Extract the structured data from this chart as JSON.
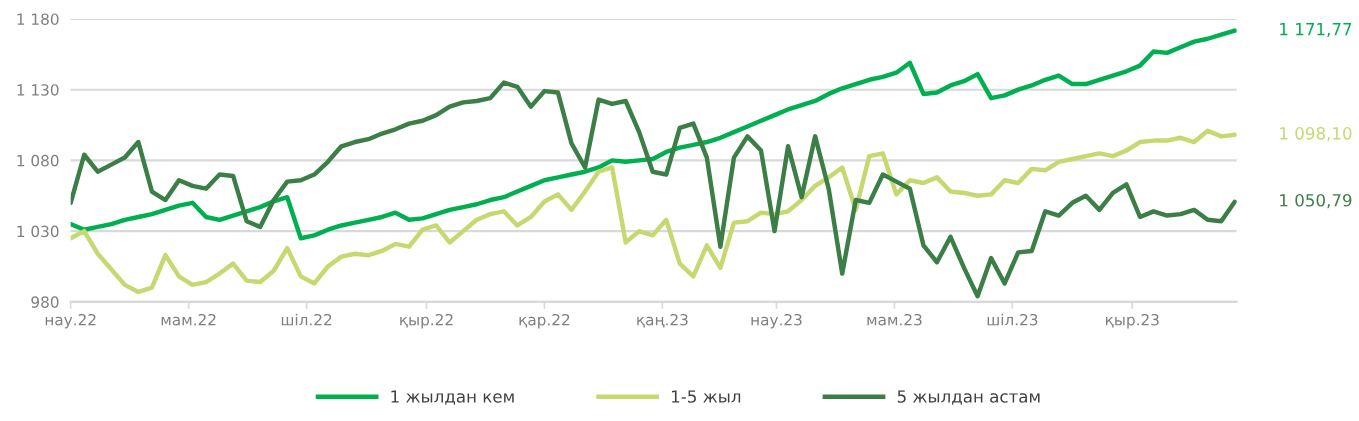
{
  "chart_data": {
    "type": "line",
    "x": [
      "2022-03-01",
      "2022-03-08",
      "2022-03-15",
      "2022-03-22",
      "2022-03-29",
      "2022-04-05",
      "2022-04-12",
      "2022-04-19",
      "2022-04-26",
      "2022-05-03",
      "2022-05-10",
      "2022-05-17",
      "2022-05-24",
      "2022-05-31",
      "2022-06-07",
      "2022-06-14",
      "2022-06-21",
      "2022-06-28",
      "2022-07-05",
      "2022-07-12",
      "2022-07-19",
      "2022-07-26",
      "2022-08-02",
      "2022-08-09",
      "2022-08-16",
      "2022-08-23",
      "2022-08-30",
      "2022-09-06",
      "2022-09-13",
      "2022-09-20",
      "2022-09-27",
      "2022-10-04",
      "2022-10-11",
      "2022-10-18",
      "2022-10-25",
      "2022-11-01",
      "2022-11-08",
      "2022-11-15",
      "2022-11-22",
      "2022-11-29",
      "2022-12-06",
      "2022-12-13",
      "2022-12-20",
      "2022-12-27",
      "2023-01-03",
      "2023-01-10",
      "2023-01-17",
      "2023-01-24",
      "2023-01-31",
      "2023-02-07",
      "2023-02-14",
      "2023-02-21",
      "2023-02-28",
      "2023-03-07",
      "2023-03-14",
      "2023-03-21",
      "2023-03-28",
      "2023-04-04",
      "2023-04-11",
      "2023-04-18",
      "2023-04-25",
      "2023-05-02",
      "2023-05-09",
      "2023-05-16",
      "2023-05-23",
      "2023-05-30",
      "2023-06-06",
      "2023-06-13",
      "2023-06-20",
      "2023-06-27",
      "2023-07-04",
      "2023-07-11",
      "2023-07-18",
      "2023-07-25",
      "2023-08-01",
      "2023-08-08",
      "2023-08-15",
      "2023-08-22",
      "2023-08-29",
      "2023-09-05",
      "2023-09-12",
      "2023-09-19",
      "2023-09-26",
      "2023-10-03",
      "2023-10-10",
      "2023-10-17",
      "2023-10-24"
    ],
    "series": [
      {
        "name": "1 жылдан кем",
        "color": "#00b050",
        "values": [
          1035,
          1031,
          1033,
          1035,
          1038,
          1040,
          1042,
          1045,
          1048,
          1050,
          1040,
          1038,
          1041,
          1044,
          1047,
          1051,
          1054,
          1025,
          1027,
          1031,
          1034,
          1036,
          1038,
          1040,
          1043,
          1038,
          1039,
          1042,
          1045,
          1047,
          1049,
          1052,
          1054,
          1058,
          1062,
          1066,
          1068,
          1070,
          1072,
          1075,
          1080,
          1079,
          1080,
          1081,
          1086,
          1089,
          1091,
          1093,
          1096,
          1100,
          1104,
          1108,
          1112,
          1116,
          1119,
          1122,
          1127,
          1131,
          1134,
          1137,
          1139,
          1142,
          1149,
          1127,
          1128,
          1133,
          1136,
          1141,
          1124,
          1126,
          1130,
          1133,
          1137,
          1140,
          1134,
          1134,
          1137,
          1140,
          1143,
          1147,
          1157,
          1156,
          1160,
          1164,
          1166,
          1169,
          1171.77
        ]
      },
      {
        "name": "1-5 жыл",
        "color": "#c6d870",
        "values": [
          1025,
          1030,
          1014,
          1003,
          992,
          987,
          990,
          1013,
          998,
          992,
          994,
          1000,
          1007,
          995,
          994,
          1002,
          1018,
          998,
          993,
          1005,
          1012,
          1014,
          1013,
          1016,
          1021,
          1019,
          1031,
          1034,
          1022,
          1030,
          1038,
          1042,
          1044,
          1034,
          1040,
          1051,
          1056,
          1045,
          1058,
          1072,
          1075,
          1022,
          1030,
          1027,
          1038,
          1007,
          998,
          1020,
          1004,
          1036,
          1037,
          1043,
          1042,
          1044,
          1052,
          1062,
          1068,
          1075,
          1045,
          1083,
          1085,
          1056,
          1066,
          1064,
          1068,
          1058,
          1057,
          1055,
          1056,
          1066,
          1064,
          1074,
          1073,
          1079,
          1081,
          1083,
          1085,
          1083,
          1087,
          1093,
          1094,
          1094,
          1096,
          1093,
          1101,
          1097,
          1098.1
        ]
      },
      {
        "name": "5 жылдан астам",
        "color": "#3b7f46",
        "values": [
          1050,
          1084,
          1072,
          1077,
          1082,
          1093,
          1058,
          1052,
          1066,
          1062,
          1060,
          1070,
          1069,
          1037,
          1033,
          1052,
          1065,
          1066,
          1070,
          1079,
          1090,
          1093,
          1095,
          1099,
          1102,
          1106,
          1108,
          1112,
          1118,
          1121,
          1122,
          1124,
          1135,
          1132,
          1118,
          1129,
          1128,
          1092,
          1075,
          1123,
          1120,
          1122,
          1100,
          1072,
          1070,
          1103,
          1106,
          1082,
          1019,
          1082,
          1097,
          1087,
          1030,
          1090,
          1054,
          1097,
          1060,
          1000,
          1052,
          1050,
          1070,
          1065,
          1060,
          1020,
          1008,
          1026,
          1004,
          984,
          1011,
          993,
          1015,
          1016,
          1044,
          1041,
          1050,
          1055,
          1045,
          1057,
          1063,
          1040,
          1044,
          1041,
          1042,
          1045,
          1038,
          1037,
          1050.79
        ]
      }
    ],
    "xlim": [
      "2022-03-01",
      "2023-10-25"
    ],
    "xticks": [
      {
        "value": "2022-03-01",
        "label": "нау.22"
      },
      {
        "value": "2022-05-01",
        "label": "мам.22"
      },
      {
        "value": "2022-07-01",
        "label": "шіл.22"
      },
      {
        "value": "2022-09-01",
        "label": "қыр.22"
      },
      {
        "value": "2022-11-01",
        "label": "қар.22"
      },
      {
        "value": "2023-01-01",
        "label": "қаң.23"
      },
      {
        "value": "2023-03-01",
        "label": "нау.23"
      },
      {
        "value": "2023-05-01",
        "label": "мам.23"
      },
      {
        "value": "2023-07-01",
        "label": "шіл.23"
      },
      {
        "value": "2023-09-01",
        "label": "қыр.23"
      }
    ],
    "ylim": [
      980,
      1180
    ],
    "yticks": [
      980,
      {
        "value": 1030,
        "label": "1 030"
      },
      {
        "value": 1080,
        "label": "1 080"
      },
      {
        "value": 1130,
        "label": "1 130"
      },
      {
        "value": 1180,
        "label": "1 180"
      }
    ],
    "annotations": [
      "1 171,77",
      "1 098,10",
      "1 050,79"
    ],
    "grid": "y",
    "legend": "bottom",
    "marker": "none",
    "line_style": "solid"
  }
}
